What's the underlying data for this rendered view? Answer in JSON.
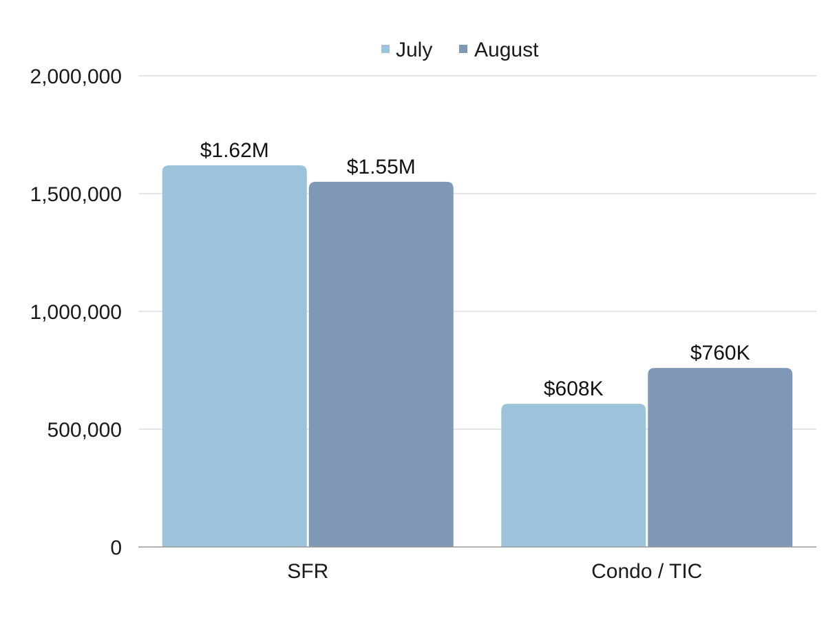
{
  "chart_data": {
    "type": "bar",
    "title": "",
    "xlabel": "",
    "ylabel": "",
    "categories": [
      "SFR",
      "Condo / TIC"
    ],
    "series": [
      {
        "name": "July",
        "color": "#9cc3d9",
        "values": [
          1620000,
          608000
        ],
        "labels": [
          "$1.62M",
          "$608K"
        ]
      },
      {
        "name": "August",
        "color": "#7f98b5",
        "values": [
          1550000,
          760000
        ],
        "labels": [
          "$1.55M",
          "$760K"
        ]
      }
    ],
    "ylim": [
      0,
      2000000
    ],
    "yticks": [
      0,
      500000,
      1000000,
      1500000,
      2000000
    ],
    "ytick_labels": [
      "0",
      "500,000",
      "1,000,000",
      "1,500,000",
      "2,000,000"
    ],
    "grid": true,
    "legend_position": "top-center",
    "gridline_color": "#cccccc",
    "axis_color": "#999999"
  }
}
